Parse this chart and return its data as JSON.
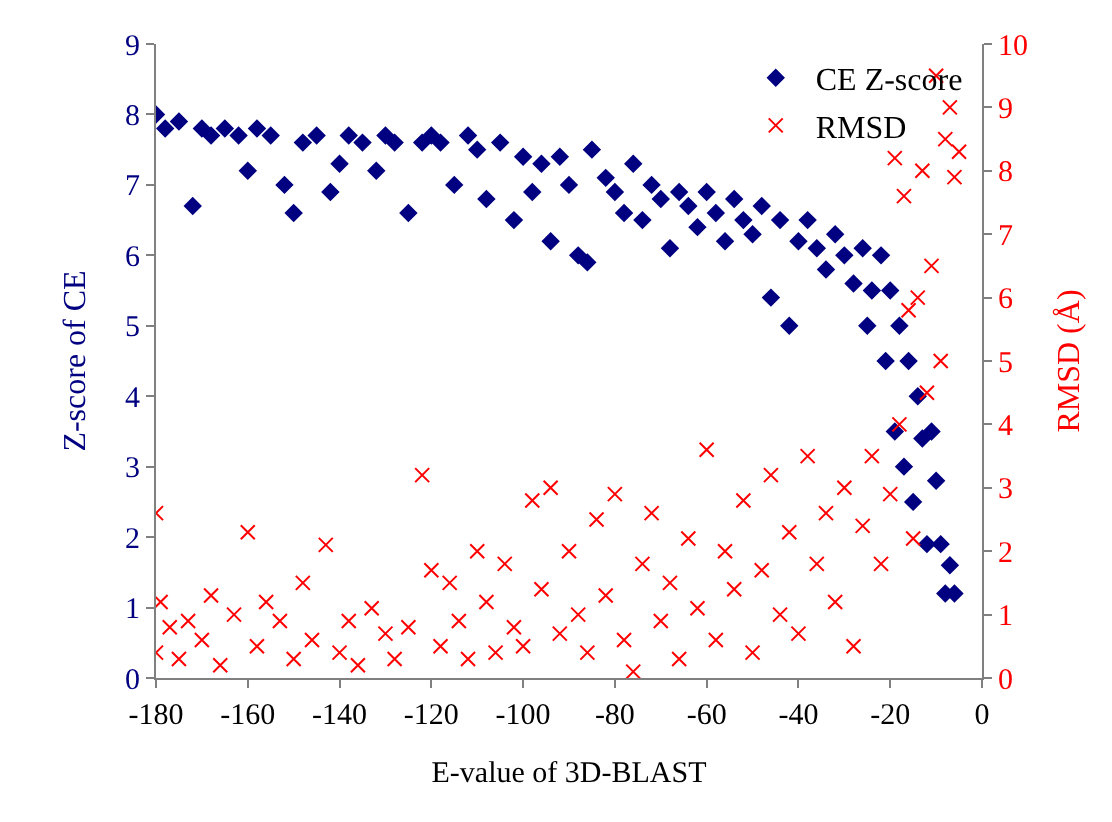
{
  "chart_data": {
    "type": "scatter",
    "xlabel": "E-value of 3D-BLAST",
    "ylabel": "Z-score of CE",
    "y2label": "RMSD (Å)",
    "xlim": [
      -180,
      0
    ],
    "xticks": [
      -180,
      -160,
      -140,
      -120,
      -100,
      -80,
      -60,
      -40,
      -20,
      0
    ],
    "ylim": [
      0,
      9
    ],
    "yticks": [
      0,
      1,
      2,
      3,
      4,
      5,
      6,
      7,
      8,
      9
    ],
    "y2lim": [
      0,
      10
    ],
    "y2ticks": [
      0,
      1,
      2,
      3,
      4,
      5,
      6,
      7,
      8,
      9,
      10
    ],
    "legend": "top right",
    "series": [
      {
        "name": "CE Z-score",
        "color": "#000080",
        "marker": "diamond",
        "x": [
          -180,
          -178,
          -175,
          -172,
          -170,
          -168,
          -165,
          -162,
          -160,
          -158,
          -155,
          -152,
          -150,
          -148,
          -145,
          -142,
          -140,
          -138,
          -135,
          -132,
          -130,
          -128,
          -125,
          -122,
          -120,
          -118,
          -115,
          -112,
          -110,
          -108,
          -105,
          -102,
          -100,
          -98,
          -96,
          -94,
          -92,
          -90,
          -88,
          -86,
          -85,
          -82,
          -80,
          -78,
          -76,
          -74,
          -72,
          -70,
          -68,
          -66,
          -64,
          -62,
          -60,
          -58,
          -56,
          -54,
          -52,
          -50,
          -48,
          -46,
          -44,
          -42,
          -40,
          -38,
          -36,
          -34,
          -32,
          -30,
          -28,
          -26,
          -25,
          -24,
          -22,
          -21,
          -20,
          -19,
          -18,
          -17,
          -16,
          -15,
          -14,
          -13,
          -12,
          -11,
          -10,
          -9,
          -8,
          -7,
          -6
        ],
        "values": [
          8.0,
          7.8,
          7.9,
          6.7,
          7.8,
          7.7,
          7.8,
          7.7,
          7.2,
          7.8,
          7.7,
          7.0,
          6.6,
          7.6,
          7.7,
          6.9,
          7.3,
          7.7,
          7.6,
          7.2,
          7.7,
          7.6,
          6.6,
          7.6,
          7.7,
          7.6,
          7.0,
          7.7,
          7.5,
          6.8,
          7.6,
          6.5,
          7.4,
          6.9,
          7.3,
          6.2,
          7.4,
          7.0,
          6.0,
          5.9,
          7.5,
          7.1,
          6.9,
          6.6,
          7.3,
          6.5,
          7.0,
          6.8,
          6.1,
          6.9,
          6.7,
          6.4,
          6.9,
          6.6,
          6.2,
          6.8,
          6.5,
          6.3,
          6.7,
          5.4,
          6.5,
          5.0,
          6.2,
          6.5,
          6.1,
          5.8,
          6.3,
          6.0,
          5.6,
          6.1,
          5.0,
          5.5,
          6.0,
          4.5,
          5.5,
          3.5,
          5.0,
          3.0,
          4.5,
          2.5,
          4.0,
          3.4,
          1.9,
          3.5,
          2.8,
          1.9,
          1.2,
          1.6,
          1.2
        ]
      },
      {
        "name": "RMSD",
        "color": "#ff0000",
        "marker": "cross",
        "axis": "y2",
        "x": [
          -180,
          -180,
          -179,
          -177,
          -175,
          -173,
          -170,
          -168,
          -166,
          -163,
          -160,
          -158,
          -156,
          -153,
          -150,
          -148,
          -146,
          -143,
          -140,
          -138,
          -136,
          -133,
          -130,
          -128,
          -125,
          -122,
          -120,
          -118,
          -116,
          -114,
          -112,
          -110,
          -108,
          -106,
          -104,
          -102,
          -100,
          -98,
          -96,
          -94,
          -92,
          -90,
          -88,
          -86,
          -84,
          -82,
          -80,
          -78,
          -76,
          -74,
          -72,
          -70,
          -68,
          -66,
          -64,
          -62,
          -60,
          -58,
          -56,
          -54,
          -52,
          -50,
          -48,
          -46,
          -44,
          -42,
          -40,
          -38,
          -36,
          -34,
          -32,
          -30,
          -28,
          -26,
          -24,
          -22,
          -20,
          -19,
          -18,
          -17,
          -16,
          -15,
          -14,
          -13,
          -12,
          -11,
          -10,
          -9,
          -8,
          -7,
          -6,
          -5
        ],
        "values": [
          2.6,
          0.4,
          1.2,
          0.8,
          0.3,
          0.9,
          0.6,
          1.3,
          0.2,
          1.0,
          2.3,
          0.5,
          1.2,
          0.9,
          0.3,
          1.5,
          0.6,
          2.1,
          0.4,
          0.9,
          0.2,
          1.1,
          0.7,
          0.3,
          0.8,
          3.2,
          1.7,
          0.5,
          1.5,
          0.9,
          0.3,
          2.0,
          1.2,
          0.4,
          1.8,
          0.8,
          0.5,
          2.8,
          1.4,
          3.0,
          0.7,
          2.0,
          1.0,
          0.4,
          2.5,
          1.3,
          2.9,
          0.6,
          0.1,
          1.8,
          2.6,
          0.9,
          1.5,
          0.3,
          2.2,
          1.1,
          3.6,
          0.6,
          2.0,
          1.4,
          2.8,
          0.4,
          1.7,
          3.2,
          1.0,
          2.3,
          0.7,
          3.5,
          1.8,
          2.6,
          1.2,
          3.0,
          0.5,
          2.4,
          3.5,
          1.8,
          2.9,
          8.2,
          4.0,
          7.6,
          5.8,
          2.2,
          6.0,
          8.0,
          4.5,
          6.5,
          9.5,
          5.0,
          8.5,
          9.0,
          7.9,
          8.3
        ]
      }
    ]
  }
}
